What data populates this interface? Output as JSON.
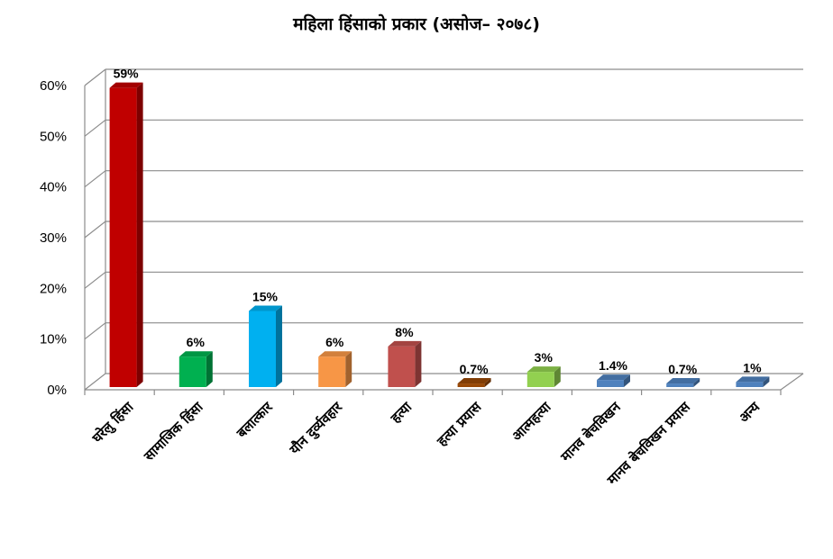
{
  "chart_data": {
    "type": "bar",
    "title": "महिला हिंसाको प्रकार  (असोज– २०७८)",
    "categories": [
      "घरेलु हिंसा",
      "सामाजिक हिंसा",
      "बलात्कार",
      "यौन दुर्व्यवहार",
      "हत्या",
      "हत्या प्रयास",
      "आत्महत्या",
      "मानव बेचविखन",
      "मानव बेचविखन प्रयास",
      "अन्य"
    ],
    "values": [
      59,
      6,
      15,
      6,
      8,
      0.7,
      3,
      1.4,
      0.7,
      1
    ],
    "data_labels": [
      "59%",
      "6%",
      "15%",
      "6%",
      "8%",
      "0.7%",
      "3%",
      "1.4%",
      "0.7%",
      "1%"
    ],
    "colors": [
      "#C00000",
      "#00B050",
      "#00B0F0",
      "#F79646",
      "#C0504D",
      "#984807",
      "#92D050",
      "#4F81BD",
      "#4F81BD",
      "#4F81BD"
    ],
    "yticks": [
      "0%",
      "10%",
      "20%",
      "30%",
      "40%",
      "50%",
      "60%"
    ],
    "ylim": [
      0,
      60
    ],
    "grid": true,
    "legend": "none"
  }
}
